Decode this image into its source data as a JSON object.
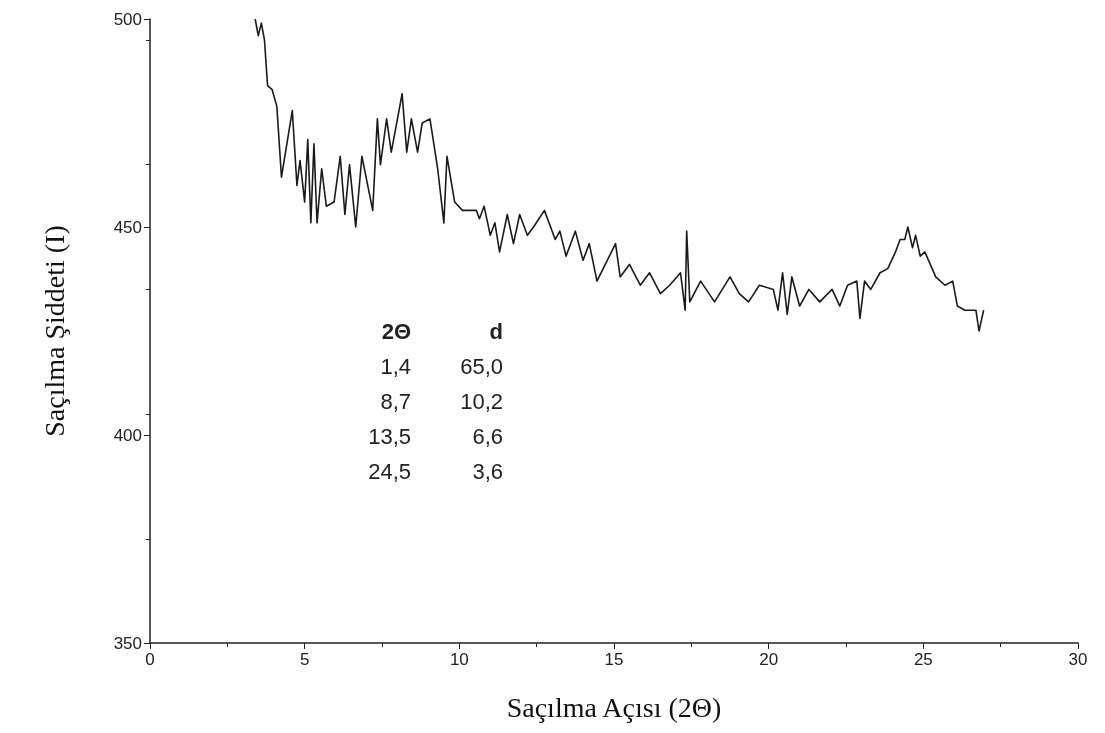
{
  "chart_data": {
    "type": "line",
    "xlabel": "Saçılma Açısı (2Θ)",
    "ylabel": "Saçılma Şiddeti (I)",
    "xlim": [
      0,
      30
    ],
    "xticks": [
      0,
      5,
      10,
      15,
      20,
      25,
      30
    ],
    "ylim": [
      350,
      500
    ],
    "yticks": [
      350,
      400,
      450,
      500
    ],
    "grid": false,
    "marker": "none",
    "line_style": "solid",
    "annotations": [
      "2Θ",
      "d",
      "1,4",
      "65,0",
      "8,7",
      "10,2",
      "13,5",
      "6,6",
      "24,5",
      "3,6"
    ],
    "series": [
      {
        "color": "#1a1a1a",
        "x": [
          3.4,
          3.5,
          3.6,
          3.7,
          3.8,
          3.95,
          4.1,
          4.25,
          4.6,
          4.75,
          4.85,
          5.0,
          5.1,
          5.2,
          5.3,
          5.4,
          5.55,
          5.7,
          5.95,
          6.15,
          6.3,
          6.45,
          6.65,
          6.85,
          7.2,
          7.35,
          7.45,
          7.65,
          7.8,
          8.0,
          8.15,
          8.3,
          8.45,
          8.65,
          8.8,
          9.05,
          9.3,
          9.5,
          9.6,
          9.85,
          10.1,
          10.55,
          10.65,
          10.8,
          11.0,
          11.15,
          11.3,
          11.55,
          11.75,
          11.95,
          12.2,
          12.4,
          12.75,
          13.1,
          13.25,
          13.45,
          13.75,
          14.0,
          14.2,
          14.45,
          15.05,
          15.2,
          15.5,
          15.85,
          16.15,
          16.5,
          16.8,
          17.15,
          17.3,
          17.35,
          17.45,
          17.8,
          18.25,
          18.75,
          19.05,
          19.35,
          19.7,
          20.15,
          20.3,
          20.45,
          20.6,
          20.75,
          21.0,
          21.3,
          21.65,
          22.05,
          22.3,
          22.55,
          22.85,
          22.95,
          23.1,
          23.3,
          23.6,
          23.85,
          24.1,
          24.25,
          24.4,
          24.5,
          24.65,
          24.75,
          24.9,
          25.05,
          25.4,
          25.7,
          25.95,
          26.1,
          26.35,
          26.7,
          26.8,
          26.95
        ],
        "values": [
          500,
          496,
          499,
          495,
          484,
          483,
          479,
          462,
          478,
          460,
          466,
          456,
          471,
          451,
          470,
          451,
          464,
          455,
          456,
          467,
          453,
          465,
          450,
          467,
          454,
          476,
          465,
          476,
          468,
          476,
          482,
          468,
          476,
          468,
          475,
          476,
          464,
          451,
          467,
          456,
          454,
          454,
          452,
          455,
          448,
          451,
          444,
          453,
          446,
          453,
          448,
          450,
          454,
          447,
          449,
          443,
          449,
          442,
          446,
          437,
          446,
          438,
          441,
          436,
          439,
          434,
          436,
          439,
          430,
          449,
          432,
          437,
          432,
          438,
          434,
          432,
          436,
          435,
          430,
          439,
          429,
          438,
          431,
          435,
          432,
          435,
          431,
          436,
          437,
          428,
          437,
          435,
          439,
          440,
          444,
          447,
          447,
          450,
          445,
          448,
          443,
          444,
          438,
          436,
          437,
          431,
          430,
          430,
          425,
          430
        ]
      }
    ]
  }
}
